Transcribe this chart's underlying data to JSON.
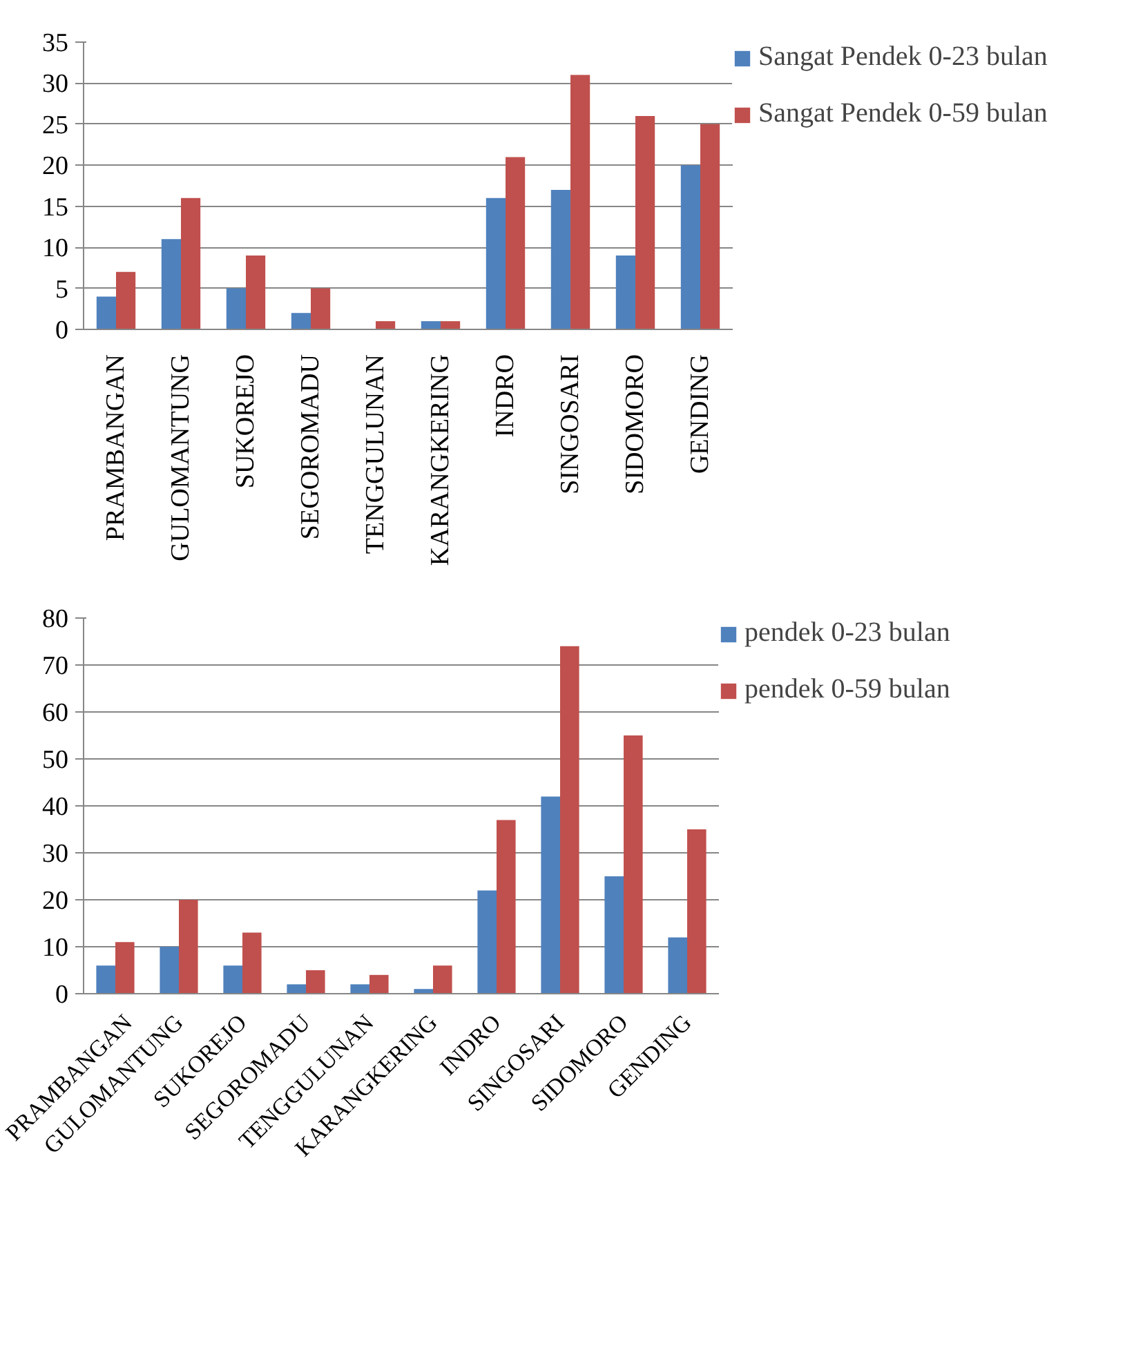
{
  "chart_data": [
    {
      "type": "bar",
      "categories": [
        "PRAMBANGAN",
        "GULOMANTUNG",
        "SUKOREJO",
        "SEGOROMADU",
        "TENGGULUNAN",
        "KARANGKERING",
        "INDRO",
        "SINGOSARI",
        "SIDOMORO",
        "GENDING"
      ],
      "series": [
        {
          "name": "Sangat Pendek 0-23 bulan",
          "color": "#4f81bd",
          "values": [
            4,
            11,
            5,
            2,
            0,
            1,
            16,
            17,
            9,
            20
          ]
        },
        {
          "name": "Sangat Pendek 0-59 bulan",
          "color": "#c0504d",
          "values": [
            7,
            16,
            9,
            5,
            1,
            1,
            21,
            31,
            26,
            25
          ]
        }
      ],
      "ylim": [
        0,
        35
      ],
      "yticks": [
        0,
        5,
        10,
        15,
        20,
        25,
        30,
        35
      ],
      "grid": "y",
      "legend": "right"
    },
    {
      "type": "bar",
      "categories": [
        "PRAMBANGAN",
        "GULOMANTUNG",
        "SUKOREJO",
        "SEGOROMADU",
        "TENGGULUNAN",
        "KARANGKERING",
        "INDRO",
        "SINGOSARI",
        "SIDOMORO",
        "GENDING"
      ],
      "series": [
        {
          "name": "pendek 0-23 bulan",
          "color": "#4f81bd",
          "values": [
            6,
            10,
            6,
            2,
            2,
            1,
            22,
            42,
            25,
            12
          ]
        },
        {
          "name": "pendek 0-59 bulan",
          "color": "#c0504d",
          "values": [
            11,
            20,
            13,
            5,
            4,
            6,
            37,
            74,
            55,
            35
          ]
        }
      ],
      "ylim": [
        0,
        80
      ],
      "yticks": [
        0,
        10,
        20,
        30,
        40,
        50,
        60,
        70,
        80
      ],
      "grid": "y",
      "legend": "right"
    }
  ]
}
